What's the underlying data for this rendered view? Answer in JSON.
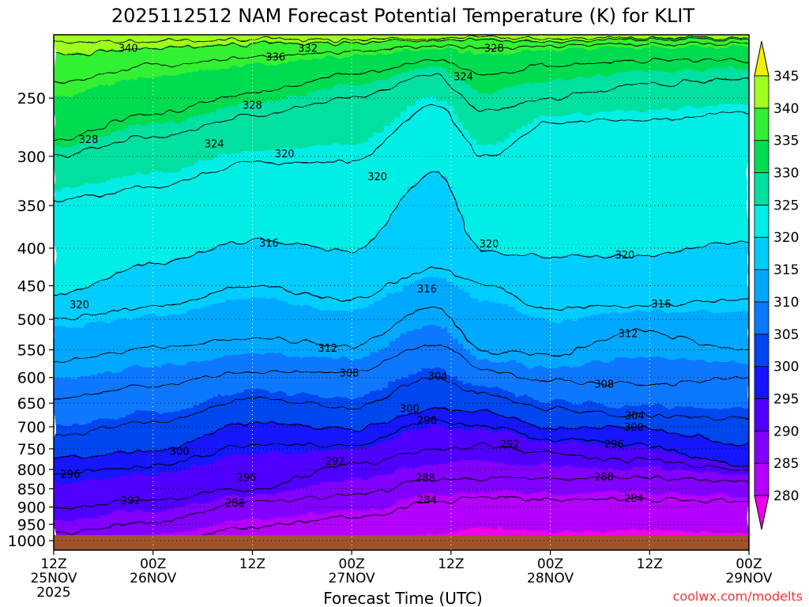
{
  "chart_data": {
    "type": "heatmap",
    "title": "2025112512 NAM Forecast Potential Temperature (K) for KLIT",
    "xlabel": "Forecast Time (UTC)",
    "ylabel": "",
    "x_ticks": [
      {
        "hour": 0,
        "line1": "12Z",
        "line2": "25NOV",
        "line3": "2025"
      },
      {
        "hour": 12,
        "line1": "00Z",
        "line2": "26NOV",
        "line3": ""
      },
      {
        "hour": 24,
        "line1": "12Z",
        "line2": "",
        "line3": ""
      },
      {
        "hour": 36,
        "line1": "00Z",
        "line2": "27NOV",
        "line3": ""
      },
      {
        "hour": 48,
        "line1": "12Z",
        "line2": "",
        "line3": ""
      },
      {
        "hour": 60,
        "line1": "00Z",
        "line2": "28NOV",
        "line3": ""
      },
      {
        "hour": 72,
        "line1": "12Z",
        "line2": "",
        "line3": ""
      },
      {
        "hour": 84,
        "line1": "00Z",
        "line2": "29NOV",
        "line3": ""
      }
    ],
    "xlim_hours": [
      0,
      84
    ],
    "y_axis": "pressure (hPa), log scale, decreasing upward",
    "ylim": [
      1030,
      205
    ],
    "y_ticks": [
      250,
      300,
      350,
      400,
      450,
      500,
      550,
      600,
      650,
      700,
      750,
      800,
      850,
      900,
      950,
      1000
    ],
    "colorbar": {
      "levels": [
        280,
        285,
        290,
        295,
        300,
        305,
        310,
        315,
        320,
        325,
        330,
        335,
        340,
        345
      ],
      "colors": [
        "#ee00ee",
        "#b400ff",
        "#8200ff",
        "#5000ff",
        "#1414ff",
        "#0046f0",
        "#0a78ff",
        "#00a8ff",
        "#00cdff",
        "#00eee6",
        "#00e0a0",
        "#00dc50",
        "#32f032",
        "#a0ff1e",
        "#f0f000"
      ],
      "extend": "both"
    },
    "contour_labels": [
      {
        "value": "340",
        "hour": 9.0,
        "p": 214
      },
      {
        "value": "336",
        "hour": 26.8,
        "p": 220
      },
      {
        "value": "332",
        "hour": 30.7,
        "p": 214
      },
      {
        "value": "328",
        "hour": 53.2,
        "p": 214
      },
      {
        "value": "324",
        "hour": 49.5,
        "p": 234
      },
      {
        "value": "328",
        "hour": 24.0,
        "p": 256
      },
      {
        "value": "328",
        "hour": 4.2,
        "p": 285
      },
      {
        "value": "324",
        "hour": 19.4,
        "p": 289
      },
      {
        "value": "320",
        "hour": 27.9,
        "p": 298
      },
      {
        "value": "320",
        "hour": 39.1,
        "p": 320
      },
      {
        "value": "316",
        "hour": 26.0,
        "p": 394
      },
      {
        "value": "320",
        "hour": 52.6,
        "p": 395
      },
      {
        "value": "320",
        "hour": 69.0,
        "p": 409
      },
      {
        "value": "320",
        "hour": 3.1,
        "p": 478
      },
      {
        "value": "316",
        "hour": 45.1,
        "p": 455
      },
      {
        "value": "316",
        "hour": 73.4,
        "p": 477
      },
      {
        "value": "312",
        "hour": 69.4,
        "p": 523
      },
      {
        "value": "312",
        "hour": 33.1,
        "p": 548
      },
      {
        "value": "308",
        "hour": 35.7,
        "p": 592
      },
      {
        "value": "304",
        "hour": 46.4,
        "p": 598
      },
      {
        "value": "308",
        "hour": 66.5,
        "p": 613
      },
      {
        "value": "300",
        "hour": 43.0,
        "p": 662
      },
      {
        "value": "304",
        "hour": 70.2,
        "p": 677
      },
      {
        "value": "296",
        "hour": 45.1,
        "p": 687
      },
      {
        "value": "300",
        "hour": 70.1,
        "p": 702
      },
      {
        "value": "292",
        "hour": 55.1,
        "p": 740
      },
      {
        "value": "296",
        "hour": 67.7,
        "p": 740
      },
      {
        "value": "300",
        "hour": 15.2,
        "p": 757
      },
      {
        "value": "292",
        "hour": 34.0,
        "p": 781
      },
      {
        "value": "296",
        "hour": 2.0,
        "p": 813
      },
      {
        "value": "296",
        "hour": 23.3,
        "p": 821
      },
      {
        "value": "288",
        "hour": 44.9,
        "p": 822
      },
      {
        "value": "288",
        "hour": 66.5,
        "p": 820
      },
      {
        "value": "292",
        "hour": 9.3,
        "p": 883
      },
      {
        "value": "284",
        "hour": 45.1,
        "p": 881
      },
      {
        "value": "284",
        "hour": 70.1,
        "p": 877
      },
      {
        "value": "288",
        "hour": 21.9,
        "p": 890
      }
    ],
    "grid": "dotted at each x tick and y tick"
  },
  "colors": {
    "ground": "#a0522d",
    "credit": "#ff3030"
  },
  "credit": "coolwx.com/modelts"
}
